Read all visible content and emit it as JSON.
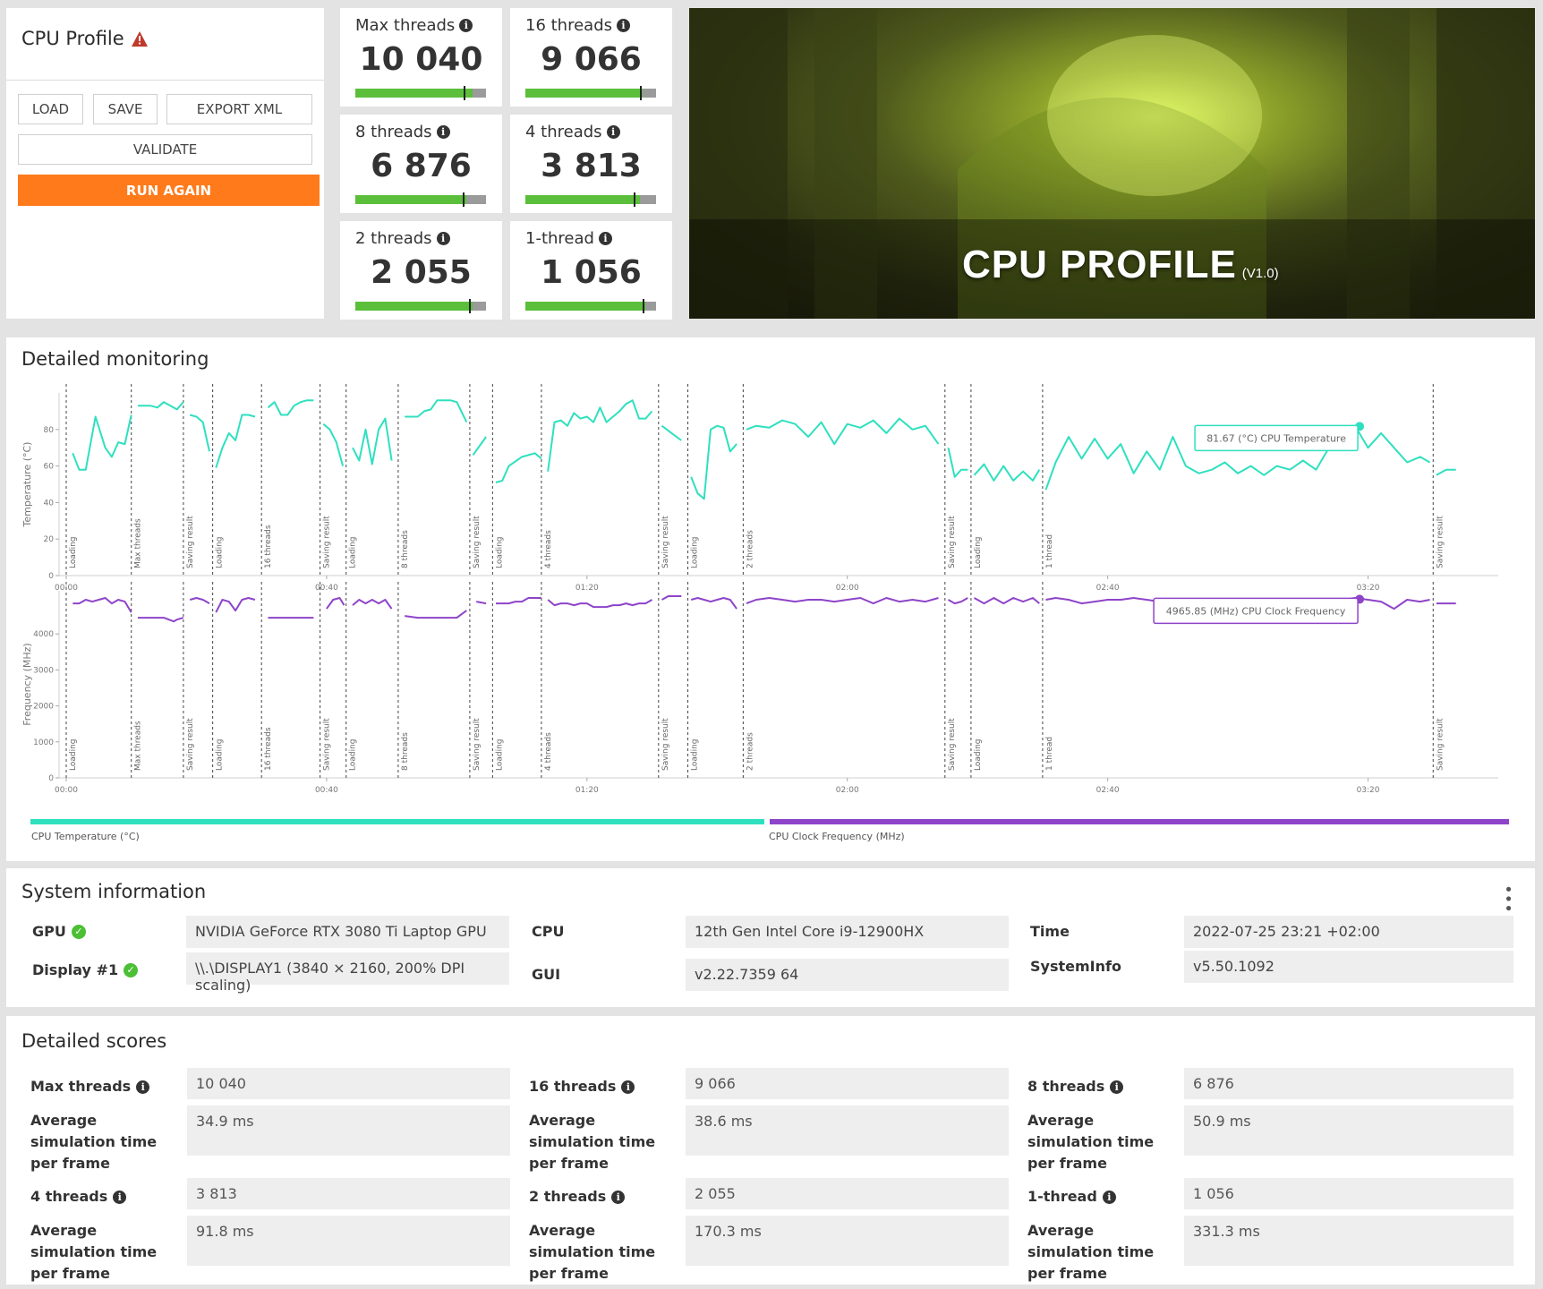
{
  "profile": {
    "title": "CPU Profile",
    "warning_icon": "warning-triangle-icon",
    "buttons": {
      "load": "LOAD",
      "save": "SAVE",
      "export": "EXPORT XML",
      "validate": "VALIDATE",
      "run_again": "RUN AGAIN"
    }
  },
  "tiles": [
    {
      "label": "Max threads",
      "value": "10 040",
      "fill": 0.9,
      "marker": 0.83
    },
    {
      "label": "16 threads",
      "value": "9 066",
      "fill": 0.9,
      "marker": 0.88
    },
    {
      "label": "8 threads",
      "value": "6 876",
      "fill": 0.85,
      "marker": 0.82
    },
    {
      "label": "4 threads",
      "value": "3 813",
      "fill": 0.88,
      "marker": 0.83
    },
    {
      "label": "2 threads",
      "value": "2 055",
      "fill": 0.9,
      "marker": 0.87
    },
    {
      "label": "1-thread",
      "value": "1 056",
      "fill": 0.92,
      "marker": 0.9
    }
  ],
  "banner": {
    "title": "CPU PROFILE",
    "version": "(V1.0)"
  },
  "monitoring": {
    "title": "Detailed monitoring",
    "legend": {
      "temp": "CPU Temperature (°C)",
      "freq": "CPU Clock Frequency (MHz)"
    },
    "tooltips": {
      "temp": "81.67 (°C) CPU Temperature",
      "freq": "4965.85 (MHz) CPU Clock Frequency"
    },
    "colors": {
      "temp": "#2fe0bf",
      "freq": "#8e44c9"
    }
  },
  "chart_data": [
    {
      "type": "line",
      "ylabel": "Temperature (°C)",
      "ylim": [
        0,
        100
      ],
      "yticks": [
        0,
        20,
        40,
        60,
        80
      ],
      "xticks": [
        "00:00",
        "00:40",
        "01:20",
        "02:00",
        "02:40",
        "03:20"
      ],
      "xlim": [
        0,
        220
      ],
      "markers": [
        {
          "t": 0,
          "label": "Loading"
        },
        {
          "t": 10,
          "label": "Max threads"
        },
        {
          "t": 18,
          "label": "Saving result"
        },
        {
          "t": 22.5,
          "label": "Loading"
        },
        {
          "t": 30,
          "label": "16 threads"
        },
        {
          "t": 39,
          "label": "Saving result"
        },
        {
          "t": 43,
          "label": "Loading"
        },
        {
          "t": 51,
          "label": "8 threads"
        },
        {
          "t": 62,
          "label": "Saving result"
        },
        {
          "t": 65.5,
          "label": "Loading"
        },
        {
          "t": 73,
          "label": "4 threads"
        },
        {
          "t": 91,
          "label": "Saving result"
        },
        {
          "t": 95.5,
          "label": "Loading"
        },
        {
          "t": 104,
          "label": "2 threads"
        },
        {
          "t": 135,
          "label": "Saving result"
        },
        {
          "t": 139,
          "label": "Loading"
        },
        {
          "t": 150,
          "label": "1 thread"
        },
        {
          "t": 210,
          "label": "Saving result"
        }
      ],
      "segments": [
        {
          "x": [
            1,
            2,
            3,
            4.5,
            6,
            7,
            8,
            9,
            10
          ],
          "y": [
            67,
            58,
            58,
            87,
            70,
            65,
            73,
            72,
            88
          ]
        },
        {
          "x": [
            11,
            13,
            14,
            15,
            16,
            17,
            18
          ],
          "y": [
            93,
            93,
            92,
            95,
            93,
            91,
            95
          ]
        },
        {
          "x": [
            19,
            20,
            21,
            22
          ],
          "y": [
            88,
            87,
            84,
            68
          ]
        },
        {
          "x": [
            23,
            24,
            25,
            26,
            27,
            28,
            29
          ],
          "y": [
            59,
            70,
            78,
            74,
            88,
            88,
            87
          ]
        },
        {
          "x": [
            31,
            32,
            33,
            34,
            35,
            36,
            37,
            38
          ],
          "y": [
            92,
            95,
            88,
            88,
            93,
            95,
            96,
            96
          ]
        },
        {
          "x": [
            39.5,
            40.5,
            41.5,
            42.5
          ],
          "y": [
            83,
            80,
            73,
            60
          ]
        },
        {
          "x": [
            44,
            45,
            46,
            47,
            48,
            49,
            50
          ],
          "y": [
            70,
            63,
            80,
            61,
            80,
            86,
            63
          ]
        },
        {
          "x": [
            52,
            54,
            55,
            56,
            57,
            59,
            60,
            61.5
          ],
          "y": [
            87,
            87,
            90,
            91,
            96,
            96,
            95,
            84
          ]
        },
        {
          "x": [
            62.5,
            64.5
          ],
          "y": [
            66,
            76
          ]
        },
        {
          "x": [
            66,
            67,
            68,
            70,
            71,
            72,
            73
          ],
          "y": [
            51,
            52,
            60,
            65,
            66,
            67,
            64
          ]
        },
        {
          "x": [
            74,
            75,
            76,
            77,
            78,
            79,
            80,
            81,
            82,
            83,
            84,
            85,
            86,
            87,
            88,
            89,
            90
          ],
          "y": [
            57,
            84,
            85,
            82,
            89,
            86,
            87,
            84,
            92,
            84,
            87,
            90,
            94,
            96,
            86,
            86,
            90
          ]
        },
        {
          "x": [
            91.5,
            93,
            94.5
          ],
          "y": [
            82,
            78,
            74
          ]
        },
        {
          "x": [
            96,
            97,
            98,
            99,
            100,
            101,
            102,
            103
          ],
          "y": [
            54,
            45,
            42,
            80,
            82,
            81,
            68,
            72
          ]
        },
        {
          "x": [
            104.5,
            106,
            108,
            110,
            112,
            114,
            116,
            118,
            120,
            122,
            124,
            126,
            128,
            130,
            132,
            134
          ],
          "y": [
            80,
            82,
            81,
            85,
            83,
            76,
            84,
            72,
            83,
            81,
            85,
            78,
            86,
            80,
            82,
            72
          ]
        },
        {
          "x": [
            135.5,
            136.5,
            137.5,
            138.5
          ],
          "y": [
            70,
            54,
            58,
            58
          ]
        },
        {
          "x": [
            139.5,
            141,
            142.5,
            144,
            145.5,
            147,
            148.5,
            149.5
          ],
          "y": [
            55,
            61,
            52,
            60,
            52,
            57,
            52,
            58
          ]
        },
        {
          "x": [
            150.5,
            152,
            154,
            156,
            158,
            160,
            162,
            164,
            166,
            168,
            170,
            172,
            174,
            176,
            178,
            180,
            182,
            184,
            186,
            188,
            190,
            192,
            194,
            196,
            198,
            200,
            202,
            204,
            206,
            208,
            209.5
          ],
          "y": [
            47,
            62,
            76,
            64,
            75,
            64,
            72,
            56,
            68,
            58,
            76,
            60,
            56,
            58,
            62,
            56,
            60,
            55,
            60,
            58,
            63,
            58,
            70,
            80,
            82,
            70,
            78,
            70,
            62,
            65,
            62
          ]
        },
        {
          "x": [
            210.5,
            212,
            213.5
          ],
          "y": [
            55,
            58,
            58
          ]
        }
      ],
      "highlight": {
        "t": 198.7,
        "y": 81.67
      }
    },
    {
      "type": "line",
      "ylabel": "Frequency (MHz)",
      "ylim": [
        0,
        5200
      ],
      "yticks": [
        0,
        1000,
        2000,
        3000,
        4000
      ],
      "xticks": [
        "00:00",
        "00:40",
        "01:20",
        "02:00",
        "02:40",
        "03:20"
      ],
      "xlim": [
        0,
        220
      ],
      "markers": [
        {
          "t": 0,
          "label": "Loading"
        },
        {
          "t": 10,
          "label": "Max threads"
        },
        {
          "t": 18,
          "label": "Saving result"
        },
        {
          "t": 22.5,
          "label": "Loading"
        },
        {
          "t": 30,
          "label": "16 threads"
        },
        {
          "t": 39,
          "label": "Saving result"
        },
        {
          "t": 43,
          "label": "Loading"
        },
        {
          "t": 51,
          "label": "8 threads"
        },
        {
          "t": 62,
          "label": "Saving result"
        },
        {
          "t": 65.5,
          "label": "Loading"
        },
        {
          "t": 73,
          "label": "4 threads"
        },
        {
          "t": 91,
          "label": "Saving result"
        },
        {
          "t": 95.5,
          "label": "Loading"
        },
        {
          "t": 104,
          "label": "2 threads"
        },
        {
          "t": 135,
          "label": "Saving result"
        },
        {
          "t": 139,
          "label": "Loading"
        },
        {
          "t": 150,
          "label": "1 thread"
        },
        {
          "t": 210,
          "label": "Saving result"
        }
      ],
      "segments": [
        {
          "x": [
            1,
            2,
            3,
            4,
            5,
            6,
            7,
            8,
            9,
            10
          ],
          "y": [
            4850,
            4850,
            4950,
            4900,
            4950,
            5000,
            4850,
            4950,
            4900,
            4600
          ]
        },
        {
          "x": [
            11,
            13,
            15,
            16.5,
            17,
            18
          ],
          "y": [
            4450,
            4450,
            4450,
            4350,
            4400,
            4450
          ]
        },
        {
          "x": [
            19,
            20,
            21,
            22
          ],
          "y": [
            4950,
            5000,
            4950,
            4850
          ]
        },
        {
          "x": [
            23,
            24,
            25,
            26,
            27,
            28,
            29
          ],
          "y": [
            4600,
            4950,
            4900,
            4650,
            4950,
            5000,
            4950
          ]
        },
        {
          "x": [
            31,
            33,
            35,
            37,
            38
          ],
          "y": [
            4450,
            4450,
            4450,
            4450,
            4450
          ]
        },
        {
          "x": [
            40,
            41,
            42,
            42.7
          ],
          "y": [
            4700,
            4950,
            5000,
            4800
          ]
        },
        {
          "x": [
            44,
            45,
            46,
            47,
            48,
            49,
            50
          ],
          "y": [
            4800,
            4950,
            4850,
            4950,
            4850,
            4950,
            4700
          ]
        },
        {
          "x": [
            52,
            54,
            56,
            58,
            60,
            61.5
          ],
          "y": [
            4500,
            4450,
            4450,
            4450,
            4450,
            4650
          ]
        },
        {
          "x": [
            63,
            64.5
          ],
          "y": [
            4900,
            4850
          ]
        },
        {
          "x": [
            66,
            68,
            69,
            70,
            71,
            72,
            73
          ],
          "y": [
            4850,
            4850,
            4900,
            4900,
            5000,
            5000,
            5000
          ]
        },
        {
          "x": [
            74,
            75,
            76,
            77,
            78,
            79,
            80,
            81,
            82,
            83,
            84,
            85,
            86,
            87,
            88,
            89,
            90
          ],
          "y": [
            4950,
            4800,
            4850,
            4850,
            4800,
            4850,
            4850,
            4750,
            4750,
            4750,
            4800,
            4800,
            4850,
            4800,
            4850,
            4850,
            4950
          ]
        },
        {
          "x": [
            91.5,
            92.5,
            93.5,
            94.5
          ],
          "y": [
            4950,
            5050,
            5050,
            5050
          ]
        },
        {
          "x": [
            96,
            97,
            98,
            99,
            100,
            101,
            102,
            103
          ],
          "y": [
            4950,
            5000,
            4950,
            4900,
            4950,
            5000,
            4950,
            4700
          ]
        },
        {
          "x": [
            104.5,
            106,
            108,
            110,
            112,
            114,
            116,
            118,
            120,
            122,
            124,
            126,
            128,
            130,
            132,
            134
          ],
          "y": [
            4850,
            4950,
            5000,
            4950,
            4900,
            4950,
            4950,
            4900,
            4950,
            5000,
            4850,
            5000,
            4900,
            4950,
            4900,
            5000
          ]
        },
        {
          "x": [
            135.5,
            136.5,
            137.5,
            138.5
          ],
          "y": [
            4950,
            4850,
            4900,
            5000
          ]
        },
        {
          "x": [
            139.5,
            141,
            142.5,
            144,
            145.5,
            147,
            148.5,
            149.5
          ],
          "y": [
            5000,
            4850,
            5000,
            4850,
            5000,
            4900,
            5000,
            4850
          ]
        },
        {
          "x": [
            150.5,
            152,
            154,
            156,
            158,
            160,
            162,
            164,
            166,
            168,
            170,
            172,
            174,
            176,
            178,
            180,
            182,
            184,
            186,
            188,
            190,
            192,
            194,
            196,
            198,
            200,
            202,
            204,
            206,
            208,
            209.5
          ],
          "y": [
            4950,
            5000,
            4950,
            4850,
            4900,
            4950,
            4950,
            5000,
            4950,
            4900,
            4950,
            4950,
            4950,
            4950,
            4950,
            4950,
            4950,
            4950,
            4950,
            4950,
            4950,
            4950,
            4950,
            4950,
            5000,
            4950,
            4900,
            4700,
            4950,
            4900,
            4950
          ]
        },
        {
          "x": [
            210.5,
            212,
            213.5
          ],
          "y": [
            4850,
            4850,
            4850
          ]
        }
      ],
      "highlight": {
        "t": 198.7,
        "y": 4965.85
      }
    }
  ],
  "system_info": {
    "title": "System information",
    "gpu_label": "GPU",
    "gpu_value": "NVIDIA GeForce RTX 3080 Ti Laptop GPU",
    "display_label": "Display #1",
    "display_value": "\\\\.\\DISPLAY1 (3840 × 2160, 200% DPI scaling)",
    "cpu_label": "CPU",
    "cpu_value": "12th Gen Intel Core i9-12900HX",
    "gui_label": "GUI",
    "gui_value": "v2.22.7359 64",
    "time_label": "Time",
    "time_value": "2022-07-25 23:21 +02:00",
    "systeminfo_label": "SystemInfo",
    "systeminfo_value": "v5.50.1092",
    "menu_icon": "kebab-menu-icon"
  },
  "detailed_scores": {
    "title": "Detailed scores",
    "sublabel": "Average simulation time per frame",
    "items": [
      {
        "label": "Max threads",
        "score": "10 040",
        "time": "34.9 ms"
      },
      {
        "label": "16 threads",
        "score": "9 066",
        "time": "38.6 ms"
      },
      {
        "label": "8 threads",
        "score": "6 876",
        "time": "50.9 ms"
      },
      {
        "label": "4 threads",
        "score": "3 813",
        "time": "91.8 ms"
      },
      {
        "label": "2 threads",
        "score": "2 055",
        "time": "170.3 ms"
      },
      {
        "label": "1-thread",
        "score": "1 056",
        "time": "331.3 ms"
      }
    ]
  }
}
